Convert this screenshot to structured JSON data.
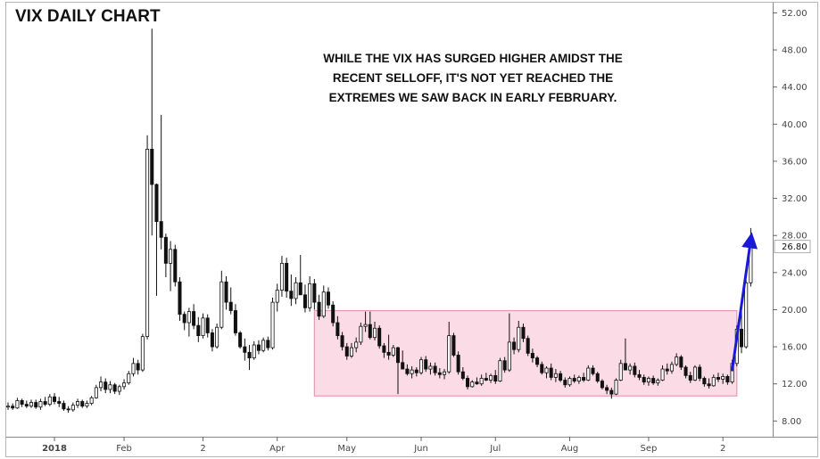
{
  "chart_data": {
    "type": "candlestick",
    "title": "VIX DAILY CHART",
    "annotation_lines": [
      "WHILE THE VIX HAS SURGED HIGHER AMIDST THE",
      "RECENT SELLOFF, IT'S NOT YET REACHED THE",
      "EXTREMES WE SAW BACK IN EARLY FEBRUARY."
    ],
    "y_axis": {
      "ticks": [
        "52.00",
        "48.00",
        "44.00",
        "40.00",
        "36.00",
        "32.00",
        "28.00",
        "24.00",
        "20.00",
        "16.00",
        "12.00",
        "8.00"
      ],
      "tick_values": [
        52,
        48,
        44,
        40,
        36,
        32,
        28,
        24,
        20,
        16,
        12,
        8
      ],
      "range": [
        6.4,
        53.0
      ],
      "side": "right"
    },
    "x_axis": {
      "labels": [
        "2018",
        "Feb",
        "2",
        "Apr",
        "May",
        "Jun",
        "Jul",
        "Aug",
        "Sep",
        "2"
      ],
      "label_index": [
        10,
        25,
        42,
        58,
        73,
        89,
        105,
        121,
        138,
        154
      ],
      "bold_labels": [
        "2018"
      ],
      "index_range": [
        0,
        163
      ]
    },
    "current_value_label": "26.80",
    "current_value": 26.8,
    "highlight_range": {
      "index_from": 66,
      "index_to": 157,
      "low": 10.7,
      "high": 19.9
    },
    "arrow": {
      "from": [
        156,
        13.5
      ],
      "to": [
        160,
        27.5
      ]
    },
    "colors": {
      "up_candle": "#ffffff",
      "down_candle": "#111111",
      "wick": "#111111",
      "highlight_fill": "#fbdbe6",
      "highlight_border": "#e59bb4",
      "arrow": "#1a1ad6",
      "current_label_bg": "#ffffff",
      "axis": "#666666",
      "grid": "#cfcfcf"
    },
    "ohlc": [
      [
        9.5,
        10.0,
        9.2,
        9.6
      ],
      [
        9.6,
        9.9,
        9.2,
        9.4
      ],
      [
        9.4,
        10.5,
        9.3,
        10.2
      ],
      [
        10.2,
        10.4,
        9.5,
        9.8
      ],
      [
        9.8,
        10.2,
        9.4,
        9.6
      ],
      [
        9.6,
        10.3,
        9.4,
        10.0
      ],
      [
        10.0,
        10.3,
        9.3,
        9.5
      ],
      [
        9.5,
        10.4,
        9.2,
        10.1
      ],
      [
        10.1,
        10.6,
        9.6,
        9.8
      ],
      [
        9.8,
        10.9,
        9.6,
        10.6
      ],
      [
        10.6,
        11.0,
        9.8,
        10.1
      ],
      [
        10.1,
        10.6,
        9.5,
        9.9
      ],
      [
        9.9,
        10.2,
        9.1,
        9.3
      ],
      [
        9.3,
        9.6,
        8.9,
        9.2
      ],
      [
        9.2,
        10.0,
        9.0,
        9.7
      ],
      [
        9.7,
        10.4,
        9.4,
        10.1
      ],
      [
        10.1,
        10.3,
        9.4,
        9.6
      ],
      [
        9.6,
        10.2,
        9.4,
        9.9
      ],
      [
        9.9,
        10.7,
        9.7,
        10.5
      ],
      [
        10.5,
        11.9,
        10.4,
        11.6
      ],
      [
        11.6,
        12.8,
        11.2,
        12.2
      ],
      [
        12.2,
        12.6,
        11.0,
        11.4
      ],
      [
        11.4,
        12.3,
        11.0,
        11.9
      ],
      [
        11.9,
        12.1,
        10.9,
        11.2
      ],
      [
        11.2,
        11.9,
        10.8,
        11.7
      ],
      [
        11.7,
        12.5,
        11.4,
        12.1
      ],
      [
        12.1,
        13.4,
        11.9,
        13.1
      ],
      [
        13.1,
        14.8,
        12.8,
        14.2
      ],
      [
        14.2,
        14.6,
        13.0,
        13.5
      ],
      [
        13.5,
        17.4,
        13.3,
        17.1
      ],
      [
        17.1,
        38.8,
        16.8,
        37.3
      ],
      [
        37.3,
        50.3,
        28.0,
        33.5
      ],
      [
        33.5,
        33.6,
        21.5,
        29.5
      ],
      [
        29.5,
        41.0,
        26.5,
        27.8
      ],
      [
        27.8,
        28.2,
        23.5,
        25.0
      ],
      [
        25.0,
        27.4,
        22.0,
        26.5
      ],
      [
        26.5,
        27.0,
        22.5,
        23.0
      ],
      [
        23.0,
        23.5,
        18.8,
        19.5
      ],
      [
        19.5,
        19.8,
        17.8,
        18.6
      ],
      [
        18.6,
        20.2,
        17.1,
        19.8
      ],
      [
        19.8,
        20.6,
        17.9,
        18.3
      ],
      [
        18.3,
        19.2,
        16.5,
        17.2
      ],
      [
        17.2,
        19.6,
        16.9,
        19.1
      ],
      [
        19.1,
        19.5,
        17.0,
        17.5
      ],
      [
        17.5,
        17.9,
        15.5,
        16.0
      ],
      [
        16.0,
        18.5,
        15.8,
        18.1
      ],
      [
        18.1,
        24.2,
        17.9,
        23.0
      ],
      [
        23.0,
        23.6,
        20.0,
        20.8
      ],
      [
        20.8,
        22.4,
        19.5,
        19.9
      ],
      [
        19.9,
        20.6,
        17.2,
        17.5
      ],
      [
        17.5,
        17.7,
        15.8,
        16.0
      ],
      [
        16.0,
        16.9,
        14.5,
        15.4
      ],
      [
        15.4,
        16.2,
        13.5,
        14.8
      ],
      [
        14.8,
        16.6,
        14.6,
        16.2
      ],
      [
        16.2,
        16.7,
        15.2,
        15.6
      ],
      [
        15.6,
        17.0,
        15.4,
        16.7
      ],
      [
        16.7,
        17.1,
        15.6,
        15.9
      ],
      [
        15.9,
        21.3,
        15.7,
        20.8
      ],
      [
        20.8,
        22.8,
        19.8,
        22.1
      ],
      [
        22.1,
        25.8,
        21.4,
        25.0
      ],
      [
        25.0,
        25.6,
        21.3,
        22.0
      ],
      [
        22.0,
        23.8,
        20.4,
        21.2
      ],
      [
        21.2,
        23.5,
        20.6,
        22.9
      ],
      [
        22.9,
        25.9,
        22.0,
        21.6
      ],
      [
        21.6,
        22.7,
        19.7,
        20.2
      ],
      [
        20.2,
        23.6,
        19.8,
        22.8
      ],
      [
        22.8,
        23.3,
        20.0,
        20.8
      ],
      [
        20.8,
        21.6,
        18.9,
        19.3
      ],
      [
        19.3,
        22.6,
        19.1,
        21.9
      ],
      [
        21.9,
        22.4,
        20.1,
        20.5
      ],
      [
        20.5,
        20.9,
        18.2,
        18.6
      ],
      [
        18.6,
        19.3,
        16.8,
        17.2
      ],
      [
        17.2,
        17.6,
        15.6,
        16.0
      ],
      [
        16.0,
        16.4,
        14.6,
        15.0
      ],
      [
        15.0,
        16.4,
        14.8,
        15.9
      ],
      [
        15.9,
        17.0,
        15.4,
        16.5
      ],
      [
        16.5,
        18.6,
        16.2,
        18.2
      ],
      [
        18.2,
        19.8,
        17.6,
        18.4
      ],
      [
        18.4,
        19.8,
        16.8,
        17.0
      ],
      [
        17.0,
        18.7,
        16.7,
        18.0
      ],
      [
        18.0,
        18.3,
        15.8,
        16.1
      ],
      [
        16.1,
        16.4,
        14.8,
        15.4
      ],
      [
        15.4,
        17.3,
        14.6,
        15.1
      ],
      [
        15.1,
        16.2,
        14.9,
        15.9
      ],
      [
        15.9,
        16.0,
        10.9,
        14.3
      ],
      [
        14.3,
        15.6,
        13.8,
        13.6
      ],
      [
        13.6,
        14.1,
        12.9,
        13.1
      ],
      [
        13.1,
        13.9,
        12.6,
        13.5
      ],
      [
        13.5,
        13.8,
        12.8,
        13.2
      ],
      [
        13.2,
        14.9,
        13.0,
        14.6
      ],
      [
        14.6,
        15.0,
        13.3,
        13.6
      ],
      [
        13.6,
        14.3,
        13.0,
        13.9
      ],
      [
        13.9,
        14.3,
        12.9,
        13.2
      ],
      [
        13.2,
        13.7,
        12.6,
        13.0
      ],
      [
        13.0,
        13.6,
        12.5,
        13.3
      ],
      [
        13.3,
        18.7,
        13.1,
        17.2
      ],
      [
        17.2,
        17.5,
        14.9,
        15.1
      ],
      [
        15.1,
        15.5,
        13.0,
        13.3
      ],
      [
        13.3,
        13.8,
        12.4,
        12.6
      ],
      [
        12.6,
        12.9,
        11.4,
        11.7
      ],
      [
        11.7,
        12.4,
        11.6,
        12.2
      ],
      [
        12.2,
        12.7,
        11.9,
        12.0
      ],
      [
        12.0,
        13.0,
        11.8,
        12.6
      ],
      [
        12.6,
        13.2,
        12.3,
        12.4
      ],
      [
        12.4,
        13.1,
        12.1,
        12.9
      ],
      [
        12.9,
        13.5,
        12.0,
        12.3
      ],
      [
        12.3,
        14.8,
        12.2,
        14.5
      ],
      [
        14.5,
        14.9,
        13.2,
        13.5
      ],
      [
        13.5,
        19.6,
        13.3,
        16.5
      ],
      [
        16.5,
        17.0,
        15.2,
        15.7
      ],
      [
        15.7,
        18.8,
        15.4,
        18.1
      ],
      [
        18.1,
        18.5,
        16.5,
        16.9
      ],
      [
        16.9,
        17.2,
        15.0,
        15.3
      ],
      [
        15.3,
        15.8,
        14.3,
        14.8
      ],
      [
        14.8,
        15.0,
        13.8,
        14.1
      ],
      [
        14.1,
        14.4,
        13.0,
        13.2
      ],
      [
        13.2,
        13.9,
        12.6,
        13.7
      ],
      [
        13.7,
        14.2,
        12.4,
        12.7
      ],
      [
        12.7,
        13.6,
        12.2,
        13.1
      ],
      [
        13.1,
        13.4,
        12.2,
        12.4
      ],
      [
        12.4,
        12.7,
        11.6,
        11.9
      ],
      [
        11.9,
        12.8,
        11.7,
        12.6
      ],
      [
        12.6,
        13.0,
        12.1,
        12.3
      ],
      [
        12.3,
        12.9,
        12.0,
        12.7
      ],
      [
        12.7,
        13.2,
        12.2,
        12.4
      ],
      [
        12.4,
        14.0,
        12.3,
        13.7
      ],
      [
        13.7,
        14.0,
        12.9,
        13.1
      ],
      [
        13.1,
        13.3,
        12.1,
        12.3
      ],
      [
        12.3,
        12.5,
        11.4,
        11.6
      ],
      [
        11.6,
        11.9,
        10.9,
        11.3
      ],
      [
        11.3,
        11.6,
        10.4,
        10.9
      ],
      [
        10.9,
        12.6,
        10.8,
        12.4
      ],
      [
        12.4,
        14.6,
        12.3,
        14.2
      ],
      [
        14.2,
        16.9,
        13.9,
        13.5
      ],
      [
        13.5,
        14.2,
        13.0,
        13.9
      ],
      [
        13.9,
        14.3,
        12.7,
        13.0
      ],
      [
        13.0,
        13.5,
        12.4,
        12.7
      ],
      [
        12.7,
        13.0,
        11.9,
        12.2
      ],
      [
        12.2,
        12.8,
        11.8,
        12.6
      ],
      [
        12.6,
        12.9,
        11.9,
        12.1
      ],
      [
        12.1,
        12.6,
        11.8,
        12.4
      ],
      [
        12.4,
        14.0,
        12.3,
        13.6
      ],
      [
        13.6,
        14.2,
        13.0,
        13.4
      ],
      [
        13.4,
        14.4,
        13.1,
        14.1
      ],
      [
        14.1,
        15.3,
        13.9,
        14.9
      ],
      [
        14.9,
        15.1,
        13.5,
        13.8
      ],
      [
        13.8,
        14.0,
        12.6,
        12.9
      ],
      [
        12.9,
        13.3,
        12.1,
        12.4
      ],
      [
        12.4,
        14.0,
        12.3,
        13.8
      ],
      [
        13.8,
        14.1,
        12.3,
        12.6
      ],
      [
        12.6,
        12.8,
        11.7,
        12.0
      ],
      [
        12.0,
        12.6,
        11.5,
        11.8
      ],
      [
        11.8,
        13.0,
        11.7,
        12.7
      ],
      [
        12.7,
        13.2,
        12.2,
        12.5
      ],
      [
        12.5,
        13.1,
        12.0,
        12.8
      ],
      [
        12.8,
        13.0,
        11.9,
        12.2
      ],
      [
        12.2,
        14.6,
        12.0,
        14.2
      ],
      [
        14.2,
        18.3,
        13.9,
        17.9
      ],
      [
        17.9,
        20.8,
        15.3,
        16.0
      ],
      [
        16.0,
        23.2,
        15.8,
        22.9
      ],
      [
        22.9,
        28.8,
        22.5,
        26.8
      ]
    ]
  }
}
